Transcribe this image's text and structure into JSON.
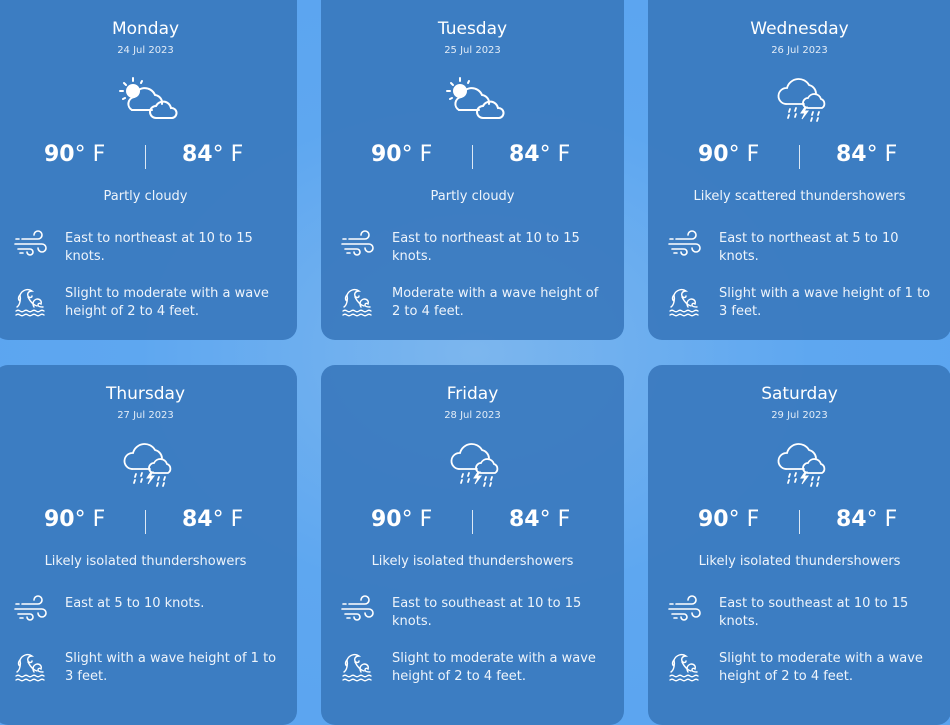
{
  "colors": {
    "background": "#5aa3ef",
    "card": "#3a7abe",
    "text": "#ffffff"
  },
  "unit": "° F",
  "days": [
    {
      "day": "Monday",
      "date": "24 Jul 2023",
      "icon": "partly-cloudy-icon",
      "high": "90",
      "low": "84",
      "condition": "Partly cloudy",
      "wind": "East to northeast at 10 to 15 knots.",
      "wave": "Slight to moderate with a wave height of 2 to 4 feet."
    },
    {
      "day": "Tuesday",
      "date": "25 Jul 2023",
      "icon": "partly-cloudy-icon",
      "high": "90",
      "low": "84",
      "condition": "Partly cloudy",
      "wind": "East to northeast at 10 to 15 knots.",
      "wave": "Moderate with a wave height of 2 to 4 feet."
    },
    {
      "day": "Wednesday",
      "date": "26 Jul 2023",
      "icon": "thunderstorm-icon",
      "high": "90",
      "low": "84",
      "condition": "Likely scattered thundershowers",
      "wind": "East to northeast at 5 to 10 knots.",
      "wave": "Slight with a wave height of 1 to 3 feet."
    },
    {
      "day": "Thursday",
      "date": "27 Jul 2023",
      "icon": "thunderstorm-icon",
      "high": "90",
      "low": "84",
      "condition": "Likely isolated thundershowers",
      "wind": "East at 5 to 10 knots.",
      "wave": "Slight with a wave height of 1 to 3 feet."
    },
    {
      "day": "Friday",
      "date": "28 Jul 2023",
      "icon": "thunderstorm-icon",
      "high": "90",
      "low": "84",
      "condition": "Likely isolated thundershowers",
      "wind": "East to southeast at 10 to 15 knots.",
      "wave": "Slight to moderate with a wave height of 2 to 4 feet."
    },
    {
      "day": "Saturday",
      "date": "29 Jul 2023",
      "icon": "thunderstorm-icon",
      "high": "90",
      "low": "84",
      "condition": "Likely isolated thundershowers",
      "wind": "East to southeast at 10 to 15 knots.",
      "wave": "Slight to moderate with a wave height of 2 to 4 feet."
    }
  ]
}
